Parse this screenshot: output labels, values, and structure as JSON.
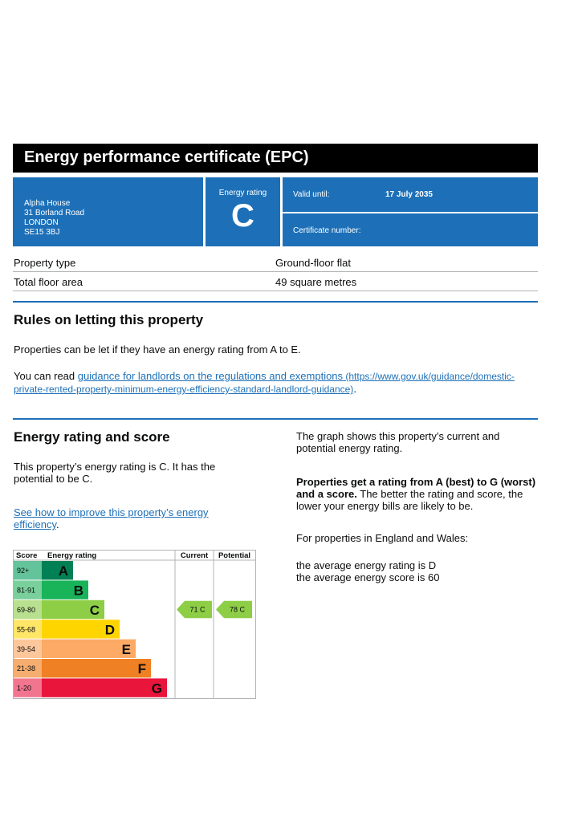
{
  "header": {
    "title": "Energy performance certificate (EPC)"
  },
  "address": {
    "lines": [
      "Alpha House",
      "31 Borland Road",
      "LONDON",
      "SE15 3BJ"
    ]
  },
  "rating_box": {
    "label": "Energy rating",
    "letter": "C"
  },
  "valid": {
    "label": "Valid until:",
    "value": "17 July 2035"
  },
  "certificate": {
    "label": "Certificate number:"
  },
  "property": {
    "rows": [
      {
        "key": "Property type",
        "value": "Ground-floor flat"
      },
      {
        "key": "Total floor area",
        "value": "49 square metres"
      }
    ]
  },
  "letting": {
    "heading": "Rules on letting this property",
    "para1": "Properties can be let if they have an energy rating from A to E.",
    "para2_prefix": "You can read ",
    "link_text": "guidance for landlords on the regulations and exemptions",
    "link_url_line1": " (https://www.gov.uk/guidance/domestic-",
    "link_url_line2": "private-rented-property-minimum-energy-efficiency-standard-landlord-guidance)",
    "para2_suffix": "."
  },
  "score_section": {
    "heading": "Energy rating and score",
    "para1_line1": "This property’s energy rating is C. It has the",
    "para1_line2": "potential to be C.",
    "link_line1": "See how to improve this property’s energy",
    "link_line2": "efficiency",
    "link_suffix": "."
  },
  "right_column": {
    "p1_line1": "The graph shows this property’s current and",
    "p1_line2": "potential energy rating.",
    "p2_bold1": "Properties get a rating from A (best) to G (worst)",
    "p2_bold2": "and a score.",
    "p2_rest1": " The better the rating and score, the",
    "p2_rest2": "lower your energy bills are likely to be.",
    "p3": "For properties in England and Wales:",
    "p4_line1": "the average energy rating is D",
    "p4_line2": "the average energy score is 60"
  },
  "chart_data": {
    "type": "table",
    "headers": {
      "score": "Score",
      "rating": "Energy rating",
      "current": "Current",
      "potential": "Potential"
    },
    "bands": [
      {
        "score": "92+",
        "letter": "A",
        "color": "#008054",
        "light": "#63c39a"
      },
      {
        "score": "81-91",
        "letter": "B",
        "color": "#19b459",
        "light": "#7ad09b"
      },
      {
        "score": "69-80",
        "letter": "C",
        "color": "#8dce46",
        "light": "#b8e08e"
      },
      {
        "score": "55-68",
        "letter": "D",
        "color": "#ffd500",
        "light": "#ffe666"
      },
      {
        "score": "39-54",
        "letter": "E",
        "color": "#fcaa65",
        "light": "#fdc79b"
      },
      {
        "score": "21-38",
        "letter": "F",
        "color": "#ef8023",
        "light": "#f5ad70"
      },
      {
        "score": "1-20",
        "letter": "G",
        "color": "#e9153b",
        "light": "#f27590"
      }
    ],
    "current": {
      "score": 71,
      "letter": "C",
      "label": "71  C"
    },
    "potential": {
      "score": 78,
      "letter": "C",
      "label": "78  C"
    }
  }
}
